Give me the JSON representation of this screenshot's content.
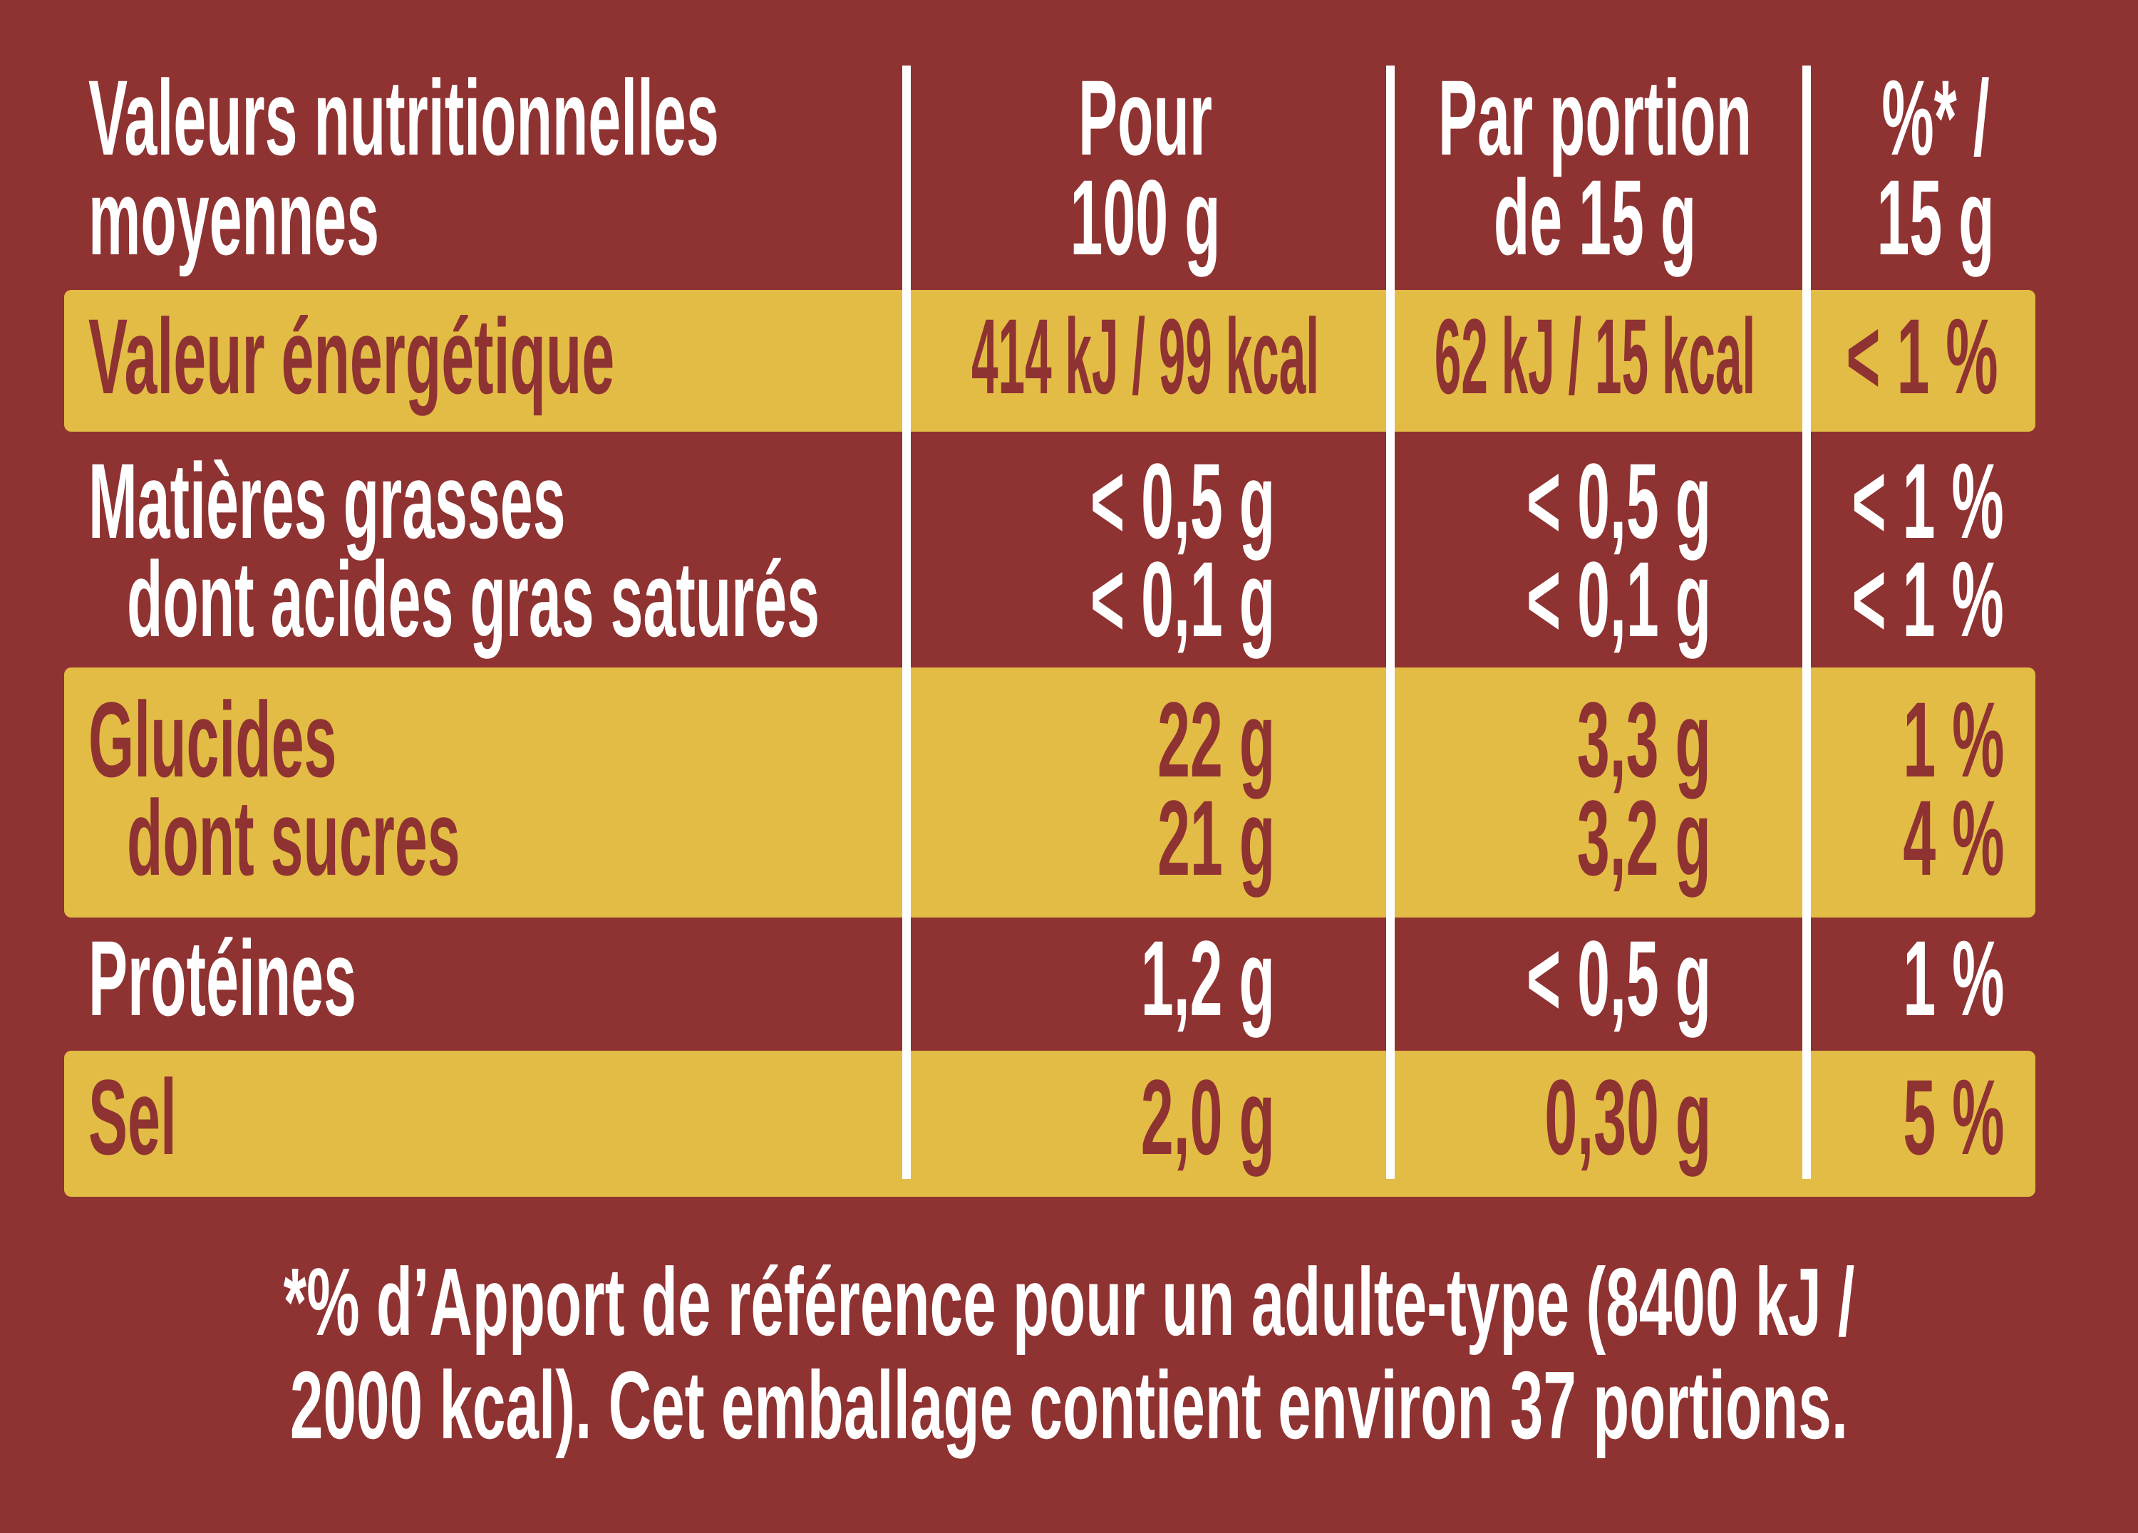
{
  "header": {
    "label": [
      "Valeurs nutritionnelles",
      "moyennes"
    ],
    "col1": [
      "Pour",
      "100 g"
    ],
    "col2": [
      "Par portion",
      "de 15 g"
    ],
    "col3": [
      "%* /",
      "15 g"
    ]
  },
  "rows": {
    "energy": {
      "label": "Valeur énergétique",
      "per100": "414 kJ / 99 kcal",
      "portion": "62 kJ / 15 kcal",
      "ri": "< 1 %"
    },
    "fat": {
      "label": "Matières grasses",
      "per100": "< 0,5 g",
      "portion": "< 0,5 g",
      "ri": "< 1 %"
    },
    "sat": {
      "label": "dont acides gras saturés",
      "per100": "< 0,1 g",
      "portion": "< 0,1 g",
      "ri": "< 1 %"
    },
    "carbs": {
      "label": "Glucides",
      "per100": "22 g",
      "portion": "3,3 g",
      "ri": "1 %"
    },
    "sugars": {
      "label": "dont sucres",
      "per100": "21 g",
      "portion": "3,2 g",
      "ri": "4 %"
    },
    "protein": {
      "label": "Protéines",
      "per100": "1,2 g",
      "portion": "< 0,5 g",
      "ri": "1 %"
    },
    "salt": {
      "label": "Sel",
      "per100": "2,0 g",
      "portion": "0,30 g",
      "ri": "5 %"
    }
  },
  "footnote": [
    "*% d’Apport de référence pour un adulte-type (8400 kJ /",
    "2000 kcal). Cet emballage contient environ 37 portions."
  ],
  "colors": {
    "background": "#8f3232",
    "highlight": "#e3bc45",
    "text": "#ffffff"
  }
}
